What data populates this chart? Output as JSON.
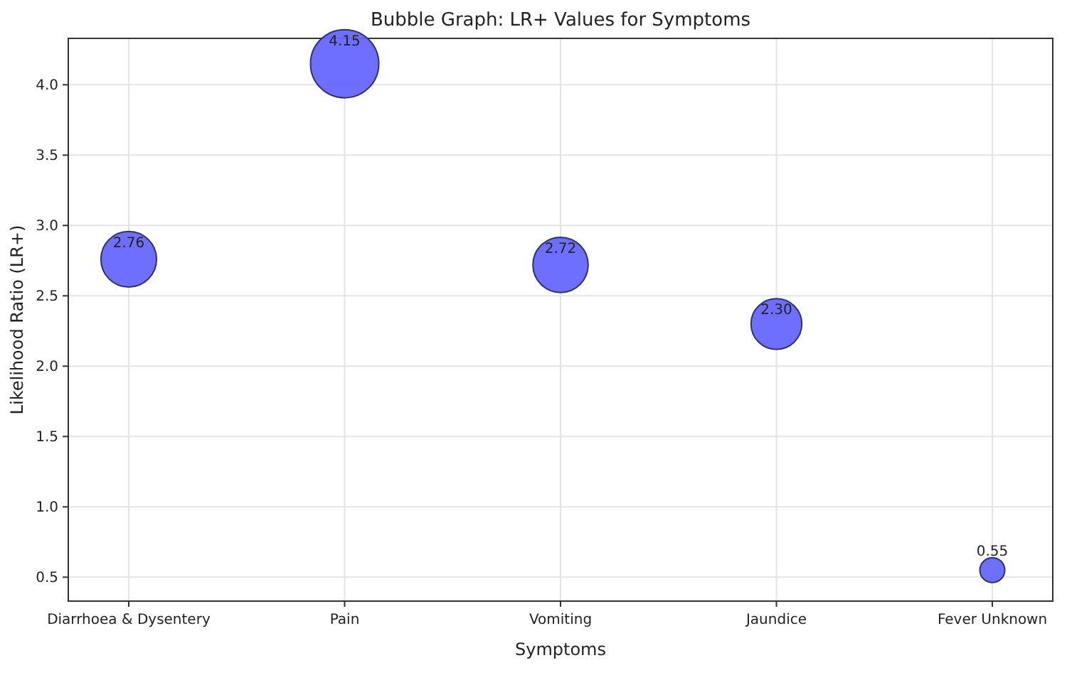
{
  "chart_data": {
    "type": "bubble",
    "title": "Bubble Graph: LR+ Values for Symptoms",
    "xlabel": "Symptoms",
    "ylabel": "Likelihood Ratio (LR+)",
    "categories": [
      "Diarrhoea & Dysentery",
      "Pain",
      "Vomiting",
      "Jaundice",
      "Fever Unknown"
    ],
    "values": [
      2.76,
      4.15,
      2.72,
      2.3,
      0.55
    ],
    "sizes": [
      0.665,
      1,
      0.655,
      0.554,
      0.133
    ],
    "color": "#6666ff",
    "ylim": [
      0.33,
      4.33
    ],
    "yticks": [
      {
        "value": 0.5,
        "label": "0.5"
      },
      {
        "value": 1,
        "label": "1.0"
      },
      {
        "value": 1.5,
        "label": "1.5"
      },
      {
        "value": 2,
        "label": "2.0"
      },
      {
        "value": 2.5,
        "label": "2.5"
      },
      {
        "value": 3,
        "label": "3.0"
      },
      {
        "value": 3.5,
        "label": "3.5"
      },
      {
        "value": 4,
        "label": "4.0"
      }
    ],
    "value_labels": [
      "2.76",
      "4.15",
      "2.72",
      "2.30",
      "0.55"
    ],
    "grid": true
  }
}
